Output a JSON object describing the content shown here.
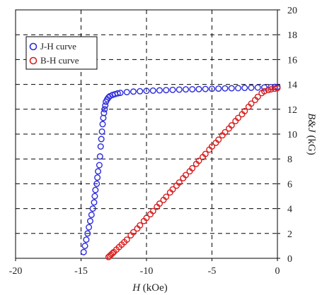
{
  "chart_data": {
    "type": "scatter",
    "xlabel_italic": "H",
    "xlabel_rest": " (kOe)",
    "ylabel_italic": "B&J",
    "ylabel_rest": " (kG)",
    "xlim": [
      -20,
      0
    ],
    "ylim": [
      0,
      20
    ],
    "x_ticks": [
      -20,
      -15,
      -10,
      -5,
      0
    ],
    "y_ticks": [
      0,
      2,
      4,
      6,
      8,
      10,
      12,
      14,
      16,
      18,
      20
    ],
    "x_tick_labels": [
      "-20",
      "-15",
      "-10",
      "-5",
      "0"
    ],
    "y_tick_labels": [
      "0",
      "2",
      "4",
      "6",
      "8",
      "10",
      "12",
      "14",
      "16",
      "18",
      "20"
    ],
    "grid": true,
    "grid_style": "dashed",
    "legend_position": "top-left",
    "series": [
      {
        "name": "J-H curve",
        "color": "#2b2bdc",
        "marker": "open-circle",
        "x": [
          -14.8,
          -14.7,
          -14.6,
          -14.5,
          -14.4,
          -14.3,
          -14.2,
          -14.1,
          -14.0,
          -13.95,
          -13.9,
          -13.8,
          -13.75,
          -13.7,
          -13.6,
          -13.55,
          -13.5,
          -13.45,
          -13.4,
          -13.35,
          -13.3,
          -13.25,
          -13.2,
          -13.15,
          -13.1,
          -13.0,
          -12.9,
          -12.8,
          -12.6,
          -12.4,
          -12.2,
          -12.0,
          -11.5,
          -11.0,
          -10.5,
          -10.0,
          -9.5,
          -9.0,
          -8.5,
          -8.0,
          -7.5,
          -7.0,
          -6.5,
          -6.0,
          -5.5,
          -5.0,
          -4.5,
          -4.0,
          -3.5,
          -3.0,
          -2.5,
          -2.0,
          -1.5,
          -1.0,
          -0.5,
          -0.2,
          0.0
        ],
        "y": [
          0.5,
          1.0,
          1.5,
          2.0,
          2.5,
          3.0,
          3.5,
          4.0,
          4.5,
          5.0,
          5.5,
          6.0,
          6.5,
          7.0,
          7.5,
          8.2,
          9.0,
          9.6,
          10.2,
          10.8,
          11.3,
          11.7,
          12.0,
          12.3,
          12.6,
          12.8,
          12.95,
          13.05,
          13.15,
          13.22,
          13.28,
          13.32,
          13.38,
          13.42,
          13.45,
          13.48,
          13.5,
          13.52,
          13.54,
          13.56,
          13.58,
          13.6,
          13.61,
          13.62,
          13.63,
          13.65,
          13.66,
          13.68,
          13.69,
          13.7,
          13.72,
          13.73,
          13.75,
          13.76,
          13.78,
          13.8,
          13.8
        ]
      },
      {
        "name": "B-H curve",
        "color": "#d81e1e",
        "marker": "open-circle",
        "x": [
          -12.9,
          -12.8,
          -12.7,
          -12.6,
          -12.5,
          -12.3,
          -12.1,
          -11.9,
          -11.7,
          -11.5,
          -11.2,
          -11.0,
          -10.7,
          -10.5,
          -10.2,
          -10.0,
          -9.7,
          -9.5,
          -9.2,
          -9.0,
          -8.7,
          -8.5,
          -8.2,
          -8.0,
          -7.7,
          -7.5,
          -7.2,
          -7.0,
          -6.7,
          -6.5,
          -6.2,
          -6.0,
          -5.7,
          -5.5,
          -5.2,
          -5.0,
          -4.7,
          -4.5,
          -4.2,
          -4.0,
          -3.7,
          -3.5,
          -3.2,
          -3.0,
          -2.7,
          -2.5,
          -2.2,
          -2.0,
          -1.7,
          -1.5,
          -1.2,
          -1.0,
          -0.7,
          -0.5,
          -0.2,
          0.0
        ],
        "y": [
          0.1,
          0.2,
          0.3,
          0.4,
          0.5,
          0.7,
          0.9,
          1.1,
          1.3,
          1.5,
          1.85,
          2.1,
          2.4,
          2.65,
          3.0,
          3.25,
          3.55,
          3.8,
          4.15,
          4.4,
          4.7,
          4.95,
          5.3,
          5.55,
          5.85,
          6.1,
          6.45,
          6.7,
          7.0,
          7.25,
          7.6,
          7.85,
          8.15,
          8.4,
          8.75,
          9.0,
          9.3,
          9.55,
          9.9,
          10.15,
          10.45,
          10.7,
          11.05,
          11.3,
          11.6,
          11.85,
          12.2,
          12.45,
          12.75,
          13.0,
          13.3,
          13.45,
          13.55,
          13.6,
          13.65,
          13.7
        ]
      }
    ]
  }
}
